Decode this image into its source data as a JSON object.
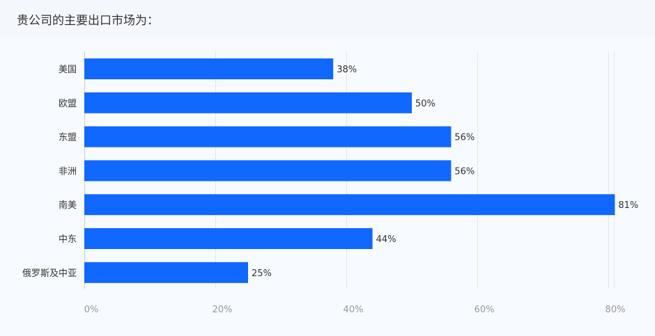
{
  "title": "贵公司的主要出口市场为：",
  "chart_data": {
    "type": "bar",
    "orientation": "horizontal",
    "categories": [
      "美国",
      "欧盟",
      "东盟",
      "非洲",
      "南美",
      "中东",
      "俄罗斯及中亚"
    ],
    "values": [
      38,
      50,
      56,
      56,
      81,
      44,
      25
    ],
    "value_labels": [
      "38%",
      "50%",
      "56%",
      "56%",
      "81%",
      "44%",
      "25%"
    ],
    "x_ticks": [
      "0%",
      "20%",
      "40%",
      "60%",
      "80%"
    ],
    "xlim": [
      0,
      80
    ],
    "grid": true,
    "bar_color": "#1068fe"
  }
}
